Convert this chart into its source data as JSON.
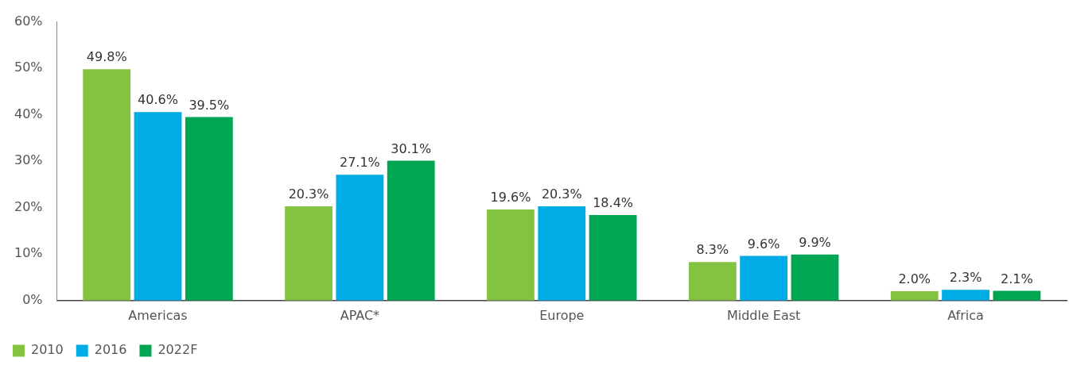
{
  "chart_data": {
    "type": "bar",
    "categories": [
      "Americas",
      "APAC*",
      "Europe",
      "Middle East",
      "Africa"
    ],
    "series": [
      {
        "name": "2010",
        "color": "#84c341",
        "values": [
          49.8,
          20.3,
          19.6,
          8.3,
          2.0
        ],
        "value_labels": [
          "49.8%",
          "20.3%",
          "19.6%",
          "8.3%",
          "2.0%"
        ]
      },
      {
        "name": "2016",
        "color": "#00ace6",
        "values": [
          40.6,
          27.1,
          20.3,
          9.6,
          2.3
        ],
        "value_labels": [
          "40.6%",
          "27.1%",
          "20.3%",
          "9.6%",
          "2.3%"
        ]
      },
      {
        "name": "2022F",
        "color": "#00a651",
        "values": [
          39.5,
          30.1,
          18.4,
          9.9,
          2.1
        ],
        "value_labels": [
          "39.5%",
          "30.1%",
          "18.4%",
          "9.9%",
          "2.1%"
        ]
      }
    ],
    "ylim": [
      0,
      60
    ],
    "yticks": [
      {
        "value": 0,
        "label": "0%"
      },
      {
        "value": 10,
        "label": "10%"
      },
      {
        "value": 20,
        "label": "20%"
      },
      {
        "value": 30,
        "label": "30%"
      },
      {
        "value": 40,
        "label": "40%"
      },
      {
        "value": 50,
        "label": "50%"
      },
      {
        "value": 60,
        "label": "60%"
      }
    ],
    "grid": false,
    "legend": "bottom left"
  }
}
